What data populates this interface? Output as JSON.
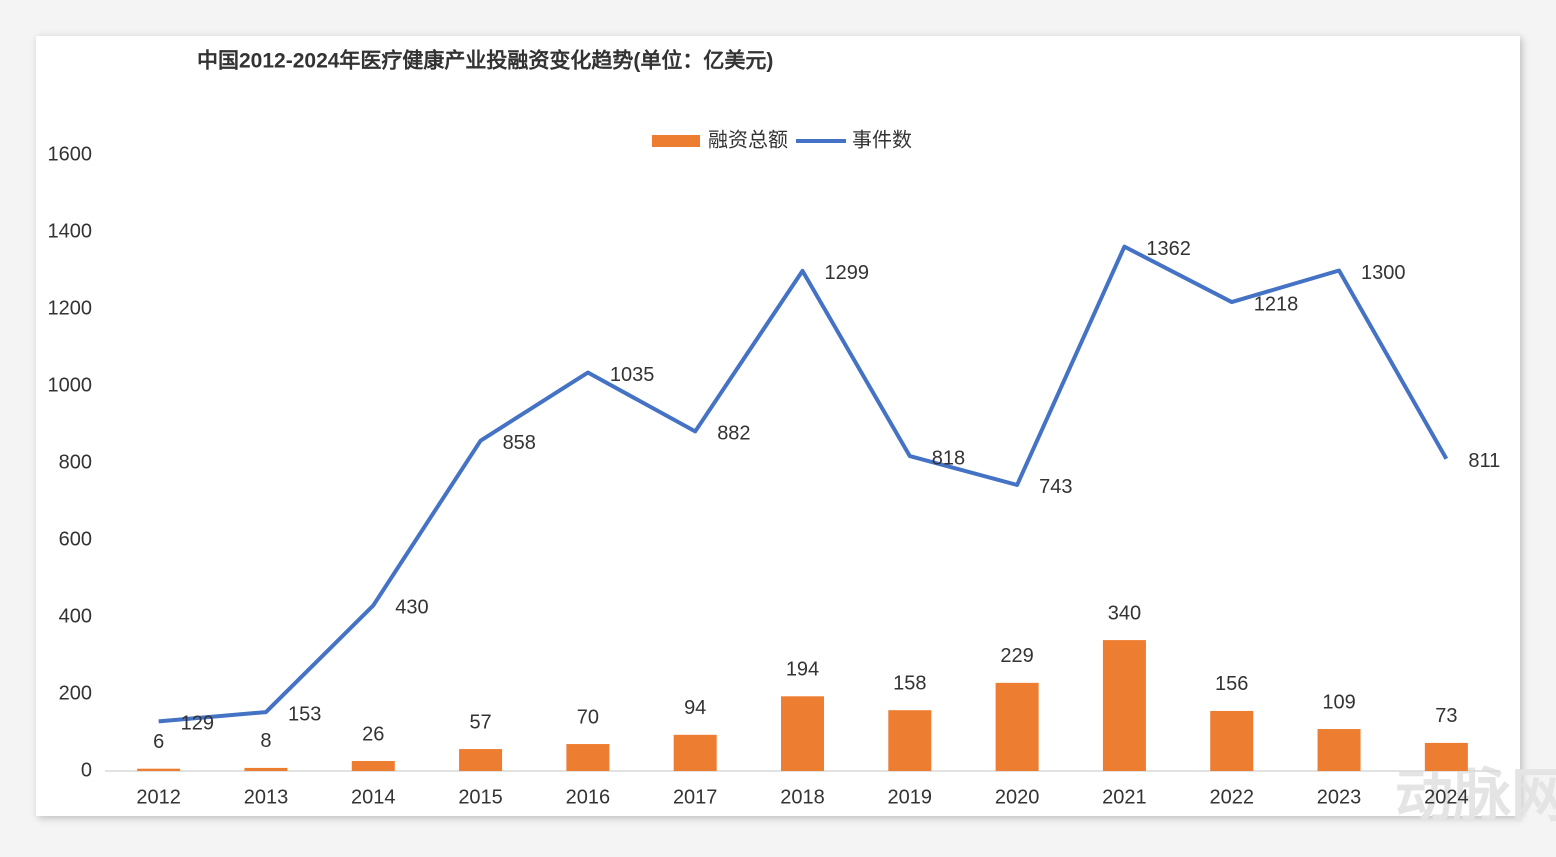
{
  "chart_data": {
    "type": "bar",
    "title": "中国2012-2024年医疗健康产业投融资变化趋势(单位：亿美元)",
    "categories": [
      "2012",
      "2013",
      "2014",
      "2015",
      "2016",
      "2017",
      "2018",
      "2019",
      "2020",
      "2021",
      "2022",
      "2023",
      "2024"
    ],
    "series": [
      {
        "name": "融资总额",
        "type": "bar",
        "color": "#ed7d31",
        "values": [
          6,
          8,
          26,
          57,
          70,
          94,
          194,
          158,
          229,
          340,
          156,
          109,
          73
        ]
      },
      {
        "name": "事件数",
        "type": "line",
        "color": "#4472c4",
        "values": [
          129,
          153,
          430,
          858,
          1035,
          882,
          1299,
          818,
          743,
          1362,
          1218,
          1300,
          811
        ]
      }
    ],
    "ylim": [
      0,
      1600
    ],
    "yticks": [
      0,
      200,
      400,
      600,
      800,
      1000,
      1200,
      1400,
      1600
    ],
    "grid": false,
    "legend": "top",
    "watermark": "动脉网"
  }
}
